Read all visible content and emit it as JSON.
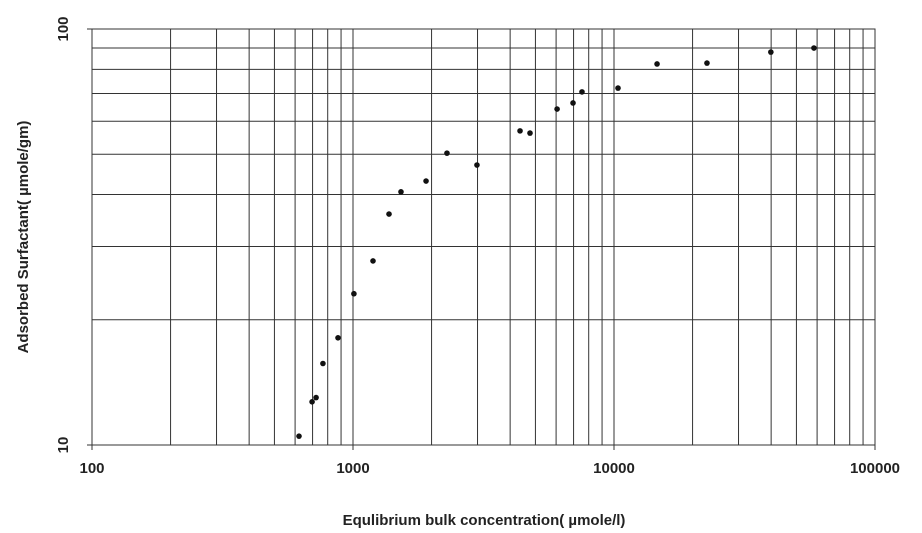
{
  "chart_data": {
    "type": "scatter",
    "x_label": "Equlibrium bulk concentration( µmole/l)",
    "y_label": "Adsorbed Surfactant( µmole/gm)",
    "x": [
      621,
      697,
      722,
      767,
      876,
      1008,
      1193,
      1374,
      1527,
      1905,
      2291,
      2985,
      4365,
      4766,
      6053,
      6966,
      7540,
      10360,
      14620,
      22710,
      39900,
      58350
    ],
    "values": [
      10.5,
      12.7,
      13.0,
      15.7,
      18.1,
      23.1,
      27.7,
      35.9,
      40.6,
      43.1,
      50.3,
      47.1,
      56.9,
      56.2,
      64.2,
      66.4,
      70.6,
      72.1,
      82.4,
      82.8,
      88.0,
      90.0
    ],
    "color": "#111111",
    "xlim": [
      100,
      100000
    ],
    "ylim": [
      10,
      100
    ],
    "xticks": [
      100,
      1000,
      10000,
      100000
    ],
    "yticks": [
      10,
      100
    ],
    "x_minor_ticks": [
      200,
      300,
      400,
      500,
      600,
      700,
      800,
      900,
      2000,
      3000,
      4000,
      5000,
      6000,
      7000,
      8000,
      9000,
      20000,
      30000,
      40000,
      50000,
      60000,
      70000,
      80000,
      90000
    ],
    "y_minor_ticks": [
      20,
      30,
      40,
      50,
      60,
      70,
      80,
      90
    ],
    "x_log": true,
    "y_log": true,
    "grid": true
  }
}
